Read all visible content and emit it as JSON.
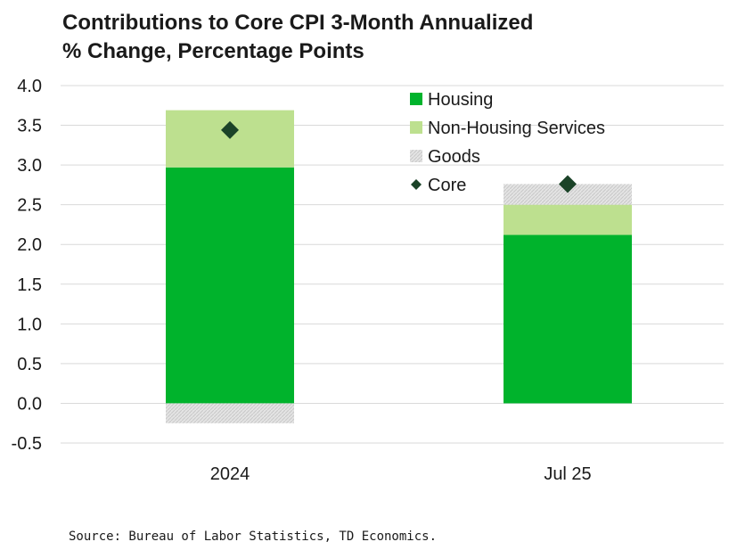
{
  "chart_data": {
    "type": "bar",
    "stacked": true,
    "title_line1": "Contributions to Core CPI 3-Month Annualized",
    "title_line2": "% Change, Percentage Points",
    "categories": [
      "2024",
      "Jul 25"
    ],
    "series": [
      {
        "name": "Housing",
        "values": [
          2.97,
          2.12
        ],
        "color": "#00b32c"
      },
      {
        "name": "Non-Housing Services",
        "values": [
          0.72,
          0.38
        ],
        "color": "#bde08f"
      },
      {
        "name": "Goods",
        "values": [
          -0.25,
          0.26
        ],
        "color": "#dcdcdc"
      }
    ],
    "core": {
      "name": "Core",
      "values": [
        3.44,
        2.76
      ],
      "color": "#1b4328"
    },
    "ylim": [
      -0.5,
      4.0
    ],
    "yticks": [
      "-0.5",
      "0.0",
      "0.5",
      "1.0",
      "1.5",
      "2.0",
      "2.5",
      "3.0",
      "3.5",
      "4.0"
    ],
    "xlabel": "",
    "ylabel": "",
    "grid": true,
    "legend_position": "top-right",
    "legend": [
      "Housing",
      "Non-Housing Services",
      "Goods",
      "Core"
    ],
    "source": "Source: Bureau of Labor Statistics, TD Economics."
  }
}
